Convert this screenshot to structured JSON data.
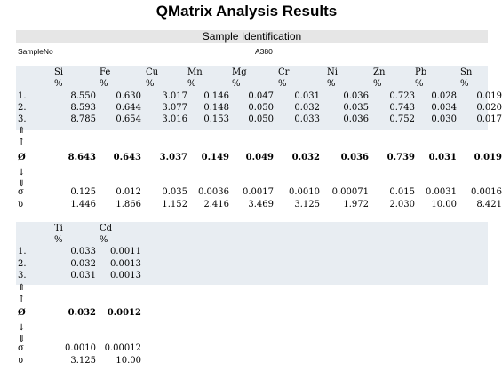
{
  "title": "QMatrix Analysis Results",
  "section_header": "Sample Identification",
  "sample": {
    "label": "SampleNo",
    "value": "A380"
  },
  "row_labels": [
    "1.",
    "2.",
    "3.",
    "⇑",
    "↑",
    "Ø",
    "↓",
    "⇓",
    "σ",
    "υ"
  ],
  "table1": {
    "elements": [
      "Si",
      "Fe",
      "Cu",
      "Mn",
      "Mg",
      "Cr",
      "Ni",
      "Zn",
      "Pb",
      "Sn"
    ],
    "unit": "%",
    "rows": [
      [
        "8.550",
        "0.630",
        "3.017",
        "0.146",
        "0.047",
        "0.031",
        "0.036",
        "0.723",
        "0.028",
        "0.019"
      ],
      [
        "8.593",
        "0.644",
        "3.077",
        "0.148",
        "0.050",
        "0.032",
        "0.035",
        "0.743",
        "0.034",
        "0.020"
      ],
      [
        "8.785",
        "0.654",
        "3.016",
        "0.153",
        "0.050",
        "0.033",
        "0.036",
        "0.752",
        "0.030",
        "0.017"
      ]
    ],
    "mean": [
      "8.643",
      "0.643",
      "3.037",
      "0.149",
      "0.049",
      "0.032",
      "0.036",
      "0.739",
      "0.031",
      "0.019"
    ],
    "sigma": [
      "0.125",
      "0.012",
      "0.035",
      "0.0036",
      "0.0017",
      "0.0010",
      "0.00071",
      "0.015",
      "0.0031",
      "0.0016"
    ],
    "rel": [
      "1.446",
      "1.866",
      "1.152",
      "2.416",
      "3.469",
      "3.125",
      "1.972",
      "2.030",
      "10.00",
      "8.421"
    ]
  },
  "table2": {
    "elements": [
      "Ti",
      "Cd"
    ],
    "unit": "%",
    "rows": [
      [
        "0.033",
        "0.0011"
      ],
      [
        "0.032",
        "0.0013"
      ],
      [
        "0.031",
        "0.0013"
      ]
    ],
    "mean": [
      "0.032",
      "0.0012"
    ],
    "sigma": [
      "0.0010",
      "0.00012"
    ],
    "rel": [
      "3.125",
      "10.00"
    ]
  }
}
